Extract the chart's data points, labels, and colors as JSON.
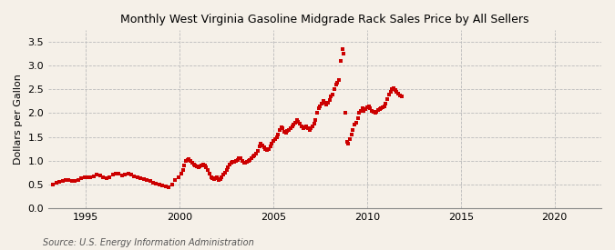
{
  "title": "Monthly West Virginia Gasoline Midgrade Rack Sales Price by All Sellers",
  "ylabel": "Dollars per Gallon",
  "source": "Source: U.S. Energy Information Administration",
  "background_color": "#f5f0e8",
  "dot_color": "#cc0000",
  "xlim": [
    1993.0,
    2022.5
  ],
  "ylim": [
    0.0,
    3.75
  ],
  "yticks": [
    0.0,
    0.5,
    1.0,
    1.5,
    2.0,
    2.5,
    3.0,
    3.5
  ],
  "xticks": [
    1995,
    2000,
    2005,
    2010,
    2015,
    2020
  ],
  "data": [
    [
      1993.25,
      0.5
    ],
    [
      1993.42,
      0.53
    ],
    [
      1993.58,
      0.55
    ],
    [
      1993.75,
      0.57
    ],
    [
      1993.92,
      0.58
    ],
    [
      1994.08,
      0.59
    ],
    [
      1994.25,
      0.57
    ],
    [
      1994.42,
      0.57
    ],
    [
      1994.58,
      0.59
    ],
    [
      1994.75,
      0.62
    ],
    [
      1994.92,
      0.64
    ],
    [
      1995.08,
      0.65
    ],
    [
      1995.25,
      0.65
    ],
    [
      1995.42,
      0.67
    ],
    [
      1995.58,
      0.7
    ],
    [
      1995.75,
      0.68
    ],
    [
      1995.92,
      0.64
    ],
    [
      1996.08,
      0.62
    ],
    [
      1996.25,
      0.65
    ],
    [
      1996.42,
      0.7
    ],
    [
      1996.58,
      0.73
    ],
    [
      1996.75,
      0.72
    ],
    [
      1996.92,
      0.69
    ],
    [
      1997.08,
      0.7
    ],
    [
      1997.25,
      0.72
    ],
    [
      1997.42,
      0.7
    ],
    [
      1997.58,
      0.67
    ],
    [
      1997.75,
      0.65
    ],
    [
      1997.92,
      0.63
    ],
    [
      1998.08,
      0.6
    ],
    [
      1998.25,
      0.58
    ],
    [
      1998.42,
      0.56
    ],
    [
      1998.58,
      0.54
    ],
    [
      1998.75,
      0.52
    ],
    [
      1998.92,
      0.5
    ],
    [
      1999.08,
      0.48
    ],
    [
      1999.25,
      0.46
    ],
    [
      1999.42,
      0.44
    ],
    [
      1999.58,
      0.5
    ],
    [
      1999.75,
      0.58
    ],
    [
      1999.92,
      0.65
    ],
    [
      2000.08,
      0.72
    ],
    [
      2000.17,
      0.8
    ],
    [
      2000.25,
      0.9
    ],
    [
      2000.33,
      1.0
    ],
    [
      2000.42,
      1.02
    ],
    [
      2000.5,
      1.03
    ],
    [
      2000.58,
      1.0
    ],
    [
      2000.67,
      0.95
    ],
    [
      2000.75,
      0.92
    ],
    [
      2000.83,
      0.9
    ],
    [
      2000.92,
      0.88
    ],
    [
      2001.0,
      0.86
    ],
    [
      2001.08,
      0.88
    ],
    [
      2001.17,
      0.9
    ],
    [
      2001.25,
      0.92
    ],
    [
      2001.33,
      0.9
    ],
    [
      2001.42,
      0.85
    ],
    [
      2001.5,
      0.8
    ],
    [
      2001.58,
      0.72
    ],
    [
      2001.67,
      0.65
    ],
    [
      2001.75,
      0.62
    ],
    [
      2001.83,
      0.6
    ],
    [
      2001.92,
      0.62
    ],
    [
      2002.0,
      0.65
    ],
    [
      2002.08,
      0.58
    ],
    [
      2002.17,
      0.6
    ],
    [
      2002.25,
      0.65
    ],
    [
      2002.33,
      0.7
    ],
    [
      2002.42,
      0.75
    ],
    [
      2002.5,
      0.8
    ],
    [
      2002.58,
      0.85
    ],
    [
      2002.67,
      0.92
    ],
    [
      2002.75,
      0.95
    ],
    [
      2002.83,
      0.97
    ],
    [
      2002.92,
      0.98
    ],
    [
      2003.0,
      1.0
    ],
    [
      2003.08,
      1.02
    ],
    [
      2003.17,
      1.05
    ],
    [
      2003.25,
      1.05
    ],
    [
      2003.33,
      1.0
    ],
    [
      2003.42,
      0.96
    ],
    [
      2003.5,
      0.95
    ],
    [
      2003.58,
      0.97
    ],
    [
      2003.67,
      1.0
    ],
    [
      2003.75,
      1.02
    ],
    [
      2003.83,
      1.05
    ],
    [
      2003.92,
      1.08
    ],
    [
      2004.0,
      1.1
    ],
    [
      2004.08,
      1.15
    ],
    [
      2004.17,
      1.2
    ],
    [
      2004.25,
      1.3
    ],
    [
      2004.33,
      1.35
    ],
    [
      2004.42,
      1.32
    ],
    [
      2004.5,
      1.28
    ],
    [
      2004.58,
      1.25
    ],
    [
      2004.67,
      1.22
    ],
    [
      2004.75,
      1.25
    ],
    [
      2004.83,
      1.3
    ],
    [
      2004.92,
      1.35
    ],
    [
      2005.0,
      1.42
    ],
    [
      2005.08,
      1.45
    ],
    [
      2005.17,
      1.5
    ],
    [
      2005.25,
      1.55
    ],
    [
      2005.33,
      1.65
    ],
    [
      2005.42,
      1.7
    ],
    [
      2005.5,
      1.68
    ],
    [
      2005.58,
      1.6
    ],
    [
      2005.67,
      1.58
    ],
    [
      2005.75,
      1.62
    ],
    [
      2005.83,
      1.65
    ],
    [
      2005.92,
      1.68
    ],
    [
      2006.0,
      1.72
    ],
    [
      2006.08,
      1.75
    ],
    [
      2006.17,
      1.8
    ],
    [
      2006.25,
      1.85
    ],
    [
      2006.33,
      1.82
    ],
    [
      2006.42,
      1.78
    ],
    [
      2006.5,
      1.72
    ],
    [
      2006.58,
      1.68
    ],
    [
      2006.67,
      1.7
    ],
    [
      2006.75,
      1.72
    ],
    [
      2006.83,
      1.68
    ],
    [
      2006.92,
      1.65
    ],
    [
      2007.0,
      1.68
    ],
    [
      2007.08,
      1.72
    ],
    [
      2007.17,
      1.78
    ],
    [
      2007.25,
      1.85
    ],
    [
      2007.33,
      2.0
    ],
    [
      2007.42,
      2.1
    ],
    [
      2007.5,
      2.15
    ],
    [
      2007.58,
      2.2
    ],
    [
      2007.67,
      2.25
    ],
    [
      2007.75,
      2.22
    ],
    [
      2007.83,
      2.18
    ],
    [
      2007.92,
      2.22
    ],
    [
      2008.0,
      2.28
    ],
    [
      2008.08,
      2.35
    ],
    [
      2008.17,
      2.4
    ],
    [
      2008.25,
      2.5
    ],
    [
      2008.33,
      2.6
    ],
    [
      2008.42,
      2.65
    ],
    [
      2008.5,
      2.7
    ],
    [
      2008.58,
      3.1
    ],
    [
      2008.67,
      3.35
    ],
    [
      2008.75,
      3.25
    ],
    [
      2008.83,
      2.0
    ],
    [
      2008.92,
      1.4
    ],
    [
      2009.0,
      1.35
    ],
    [
      2009.08,
      1.45
    ],
    [
      2009.17,
      1.55
    ],
    [
      2009.25,
      1.65
    ],
    [
      2009.33,
      1.75
    ],
    [
      2009.42,
      1.8
    ],
    [
      2009.5,
      1.9
    ],
    [
      2009.58,
      2.0
    ],
    [
      2009.67,
      2.05
    ],
    [
      2009.75,
      2.1
    ],
    [
      2009.83,
      2.05
    ],
    [
      2009.92,
      2.08
    ],
    [
      2010.0,
      2.12
    ],
    [
      2010.08,
      2.15
    ],
    [
      2010.17,
      2.1
    ],
    [
      2010.25,
      2.05
    ],
    [
      2010.33,
      2.02
    ],
    [
      2010.42,
      2.0
    ],
    [
      2010.5,
      2.03
    ],
    [
      2010.58,
      2.06
    ],
    [
      2010.67,
      2.08
    ],
    [
      2010.75,
      2.1
    ],
    [
      2010.83,
      2.12
    ],
    [
      2010.92,
      2.15
    ],
    [
      2011.0,
      2.2
    ],
    [
      2011.08,
      2.3
    ],
    [
      2011.17,
      2.4
    ],
    [
      2011.25,
      2.45
    ],
    [
      2011.33,
      2.5
    ],
    [
      2011.42,
      2.52
    ],
    [
      2011.5,
      2.48
    ],
    [
      2011.58,
      2.45
    ],
    [
      2011.67,
      2.42
    ],
    [
      2011.75,
      2.38
    ],
    [
      2011.83,
      2.35
    ]
  ]
}
